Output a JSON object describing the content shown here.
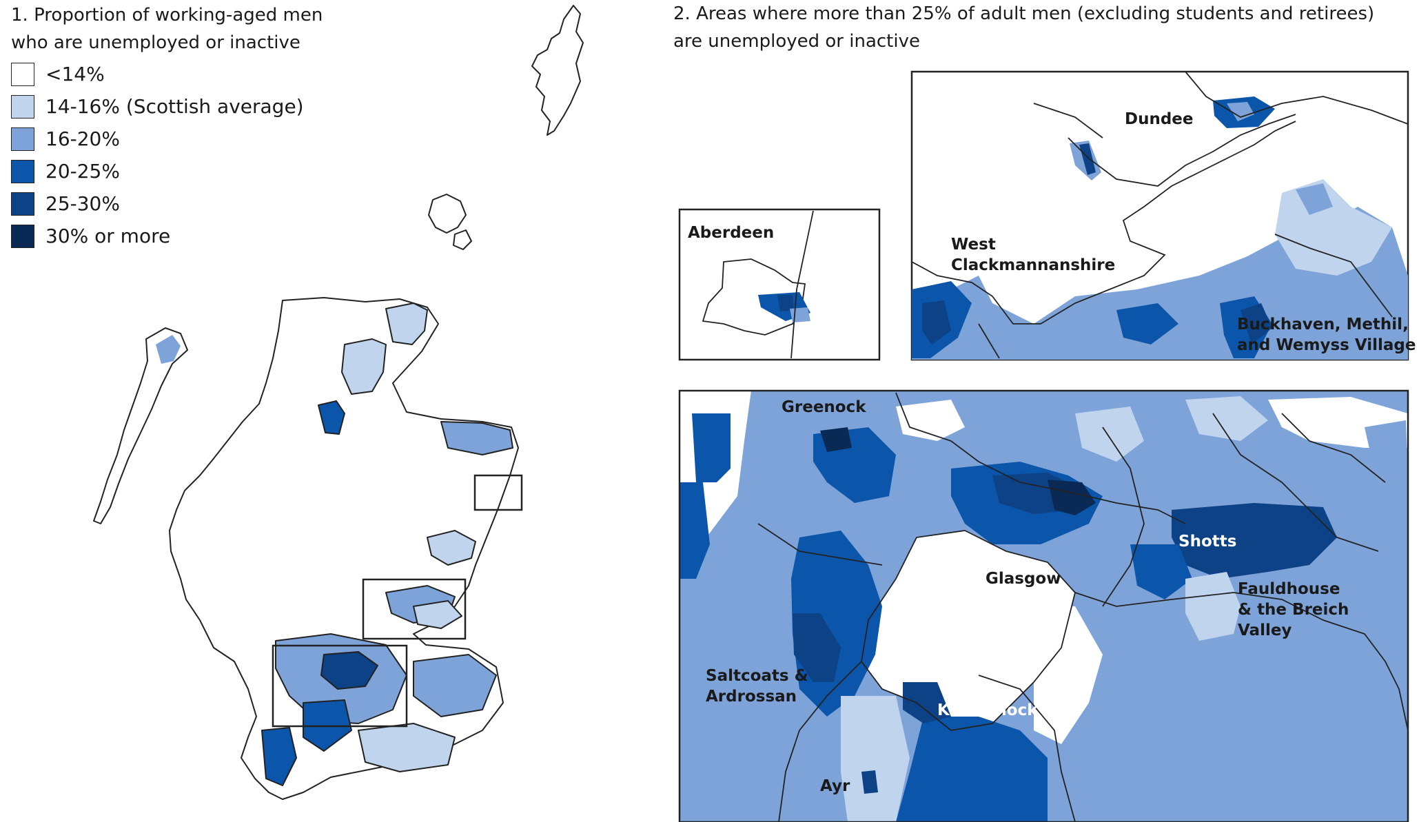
{
  "map1": {
    "title_line1": "1. Proportion of working-aged men",
    "title_line2": "who are unemployed or inactive",
    "legend": [
      {
        "label": "<14%",
        "color": "#ffffff"
      },
      {
        "label": "14-16% (Scottish average)",
        "color": "#c0d4ee"
      },
      {
        "label": "16-20%",
        "color": "#7da3d9"
      },
      {
        "label": "20-25%",
        "color": "#0b55aa"
      },
      {
        "label": "25-30%",
        "color": "#0d4287"
      },
      {
        "label": "30% or more",
        "color": "#0a2a55"
      }
    ]
  },
  "map2": {
    "title_line1": "2. Areas where more than 25% of adult men (excluding students and retirees)",
    "title_line2": "are unemployed or inactive",
    "labels": {
      "aberdeen": "Aberdeen",
      "dundee": "Dundee",
      "west_clack_1": "West",
      "west_clack_2": "Clackmannanshire",
      "buckhaven_1": "Buckhaven, Methil,",
      "buckhaven_2": "and Wemyss Village",
      "greenock": "Greenock",
      "glasgow": "Glasgow",
      "shotts": "Shotts",
      "fauldhouse_1": "Fauldhouse",
      "fauldhouse_2": "& the Breich",
      "fauldhouse_3": "Valley",
      "saltcoats_1": "Saltcoats &",
      "saltcoats_2": "Ardrossan",
      "kilmarnock": "Kilmarnock",
      "ayr": "Ayr"
    }
  }
}
